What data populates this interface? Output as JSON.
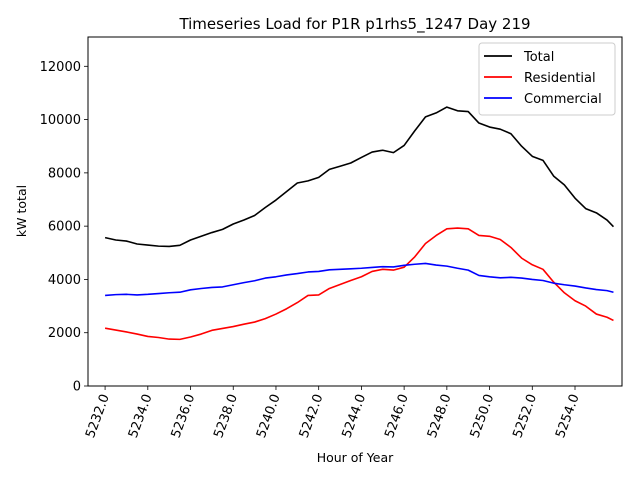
{
  "chart_data": {
    "type": "line",
    "title": "Timeseries Load for P1R p1rhs5_1247  Day 219",
    "xlabel": "Hour of Year",
    "ylabel": "kW total",
    "xlim": [
      5231.2,
      5256.2
    ],
    "ylim": [
      0,
      13100
    ],
    "x_ticks": [
      5232,
      5234,
      5236,
      5238,
      5240,
      5242,
      5244,
      5246,
      5248,
      5250,
      5252,
      5254
    ],
    "x_tick_labels": [
      "5232.0",
      "5234.0",
      "5236.0",
      "5238.0",
      "5240.0",
      "5242.0",
      "5244.0",
      "5246.0",
      "5248.0",
      "5250.0",
      "5252.0",
      "5254.0"
    ],
    "y_ticks": [
      0,
      2000,
      4000,
      6000,
      8000,
      10000,
      12000
    ],
    "y_tick_labels": [
      "0",
      "2000",
      "4000",
      "6000",
      "8000",
      "10000",
      "12000"
    ],
    "legend_position": "top-right",
    "x": [
      5232.0,
      5232.5,
      5233.0,
      5233.5,
      5234.0,
      5234.5,
      5235.0,
      5235.5,
      5236.0,
      5236.5,
      5237.0,
      5237.5,
      5238.0,
      5238.5,
      5239.0,
      5239.5,
      5240.0,
      5240.5,
      5241.0,
      5241.5,
      5242.0,
      5242.5,
      5243.0,
      5243.5,
      5244.0,
      5244.5,
      5245.0,
      5245.5,
      5246.0,
      5246.5,
      5247.0,
      5247.5,
      5248.0,
      5248.5,
      5249.0,
      5249.5,
      5250.0,
      5250.5,
      5251.0,
      5251.5,
      5252.0,
      5252.5,
      5253.0,
      5253.5,
      5254.0,
      5254.5,
      5255.0,
      5255.5
    ],
    "series": [
      {
        "name": "Total",
        "color": "#000000",
        "values": [
          5570,
          5480,
          5440,
          5330,
          5290,
          5250,
          5240,
          5280,
          5480,
          5620,
          5760,
          5880,
          6080,
          6230,
          6400,
          6700,
          6980,
          7300,
          7620,
          7700,
          7830,
          8130,
          8250,
          8370,
          8580,
          8780,
          8850,
          8760,
          9030,
          9580,
          10100,
          10250,
          10470,
          10330,
          10300,
          9870,
          9720,
          9640,
          9470,
          9000,
          8620,
          8470,
          7880,
          7550,
          7050,
          6660,
          6500,
          6230
        ]
      },
      {
        "name": "Residential",
        "color": "#ff0000",
        "values": [
          2170,
          2100,
          2030,
          1950,
          1860,
          1820,
          1760,
          1750,
          1840,
          1950,
          2090,
          2160,
          2230,
          2320,
          2400,
          2530,
          2700,
          2900,
          3130,
          3400,
          3420,
          3660,
          3810,
          3960,
          4100,
          4300,
          4380,
          4350,
          4460,
          4850,
          5350,
          5650,
          5900,
          5930,
          5900,
          5650,
          5620,
          5500,
          5200,
          4800,
          4550,
          4380,
          3900,
          3500,
          3200,
          3000,
          2700,
          2580
        ]
      },
      {
        "name": "Commercial",
        "color": "#0000ff",
        "values": [
          3400,
          3430,
          3440,
          3420,
          3440,
          3470,
          3500,
          3520,
          3610,
          3660,
          3700,
          3720,
          3800,
          3880,
          3950,
          4050,
          4100,
          4170,
          4220,
          4280,
          4300,
          4360,
          4380,
          4400,
          4420,
          4450,
          4480,
          4470,
          4530,
          4570,
          4600,
          4540,
          4500,
          4420,
          4350,
          4150,
          4100,
          4060,
          4080,
          4050,
          4000,
          3960,
          3860,
          3800,
          3750,
          3680,
          3620,
          3580
        ]
      }
    ],
    "series_end": {
      "x": 5255.8,
      "Total": 5980,
      "Residential": 2460,
      "Commercial": 3520
    }
  }
}
